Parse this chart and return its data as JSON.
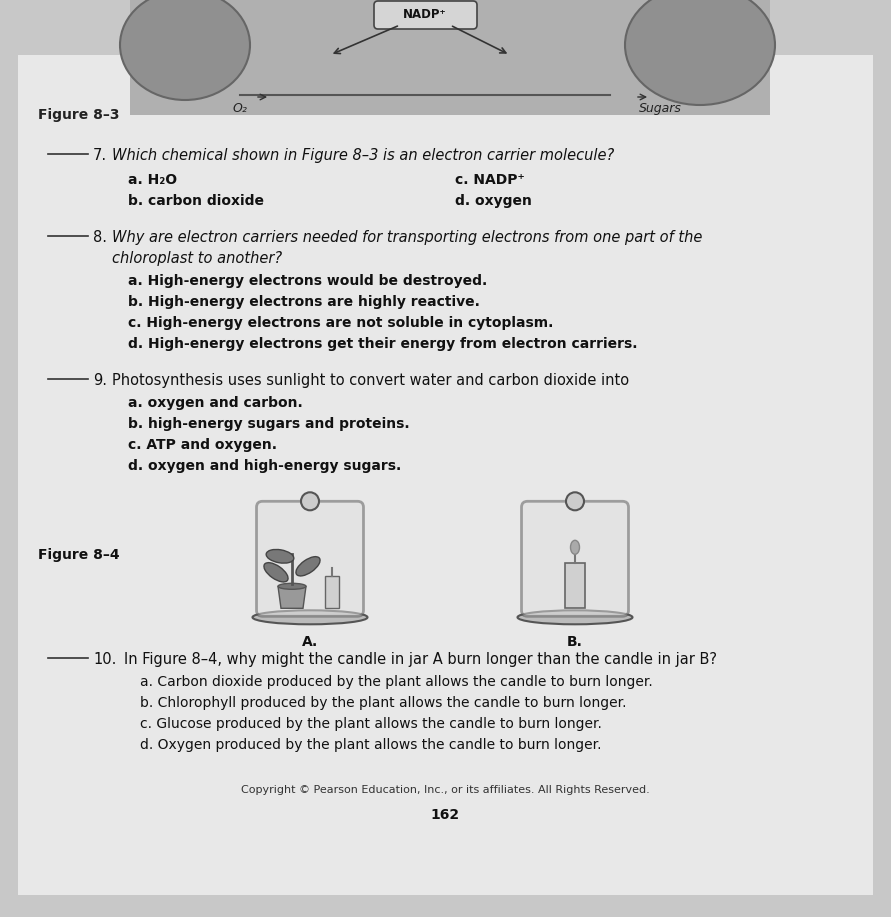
{
  "background_color": "#c8c8c8",
  "paper_color": "#e8e8e8",
  "figure_title": "Figure 8–3",
  "figure4_title": "Figure 8–4",
  "copyright": "Copyright © Pearson Education, Inc., or its affiliates. All Rights Reserved.",
  "page_number": "162",
  "blank_line_color": "#333333",
  "text_color": "#111111",
  "q7_text": "Which chemical shown in Figure 8–3 is an electron carrier molecule?",
  "q7_a": "a. H₂O",
  "q7_b": "b. carbon dioxide",
  "q7_c": "c. NADP⁺",
  "q7_d": "d. oxygen",
  "q8_text1": "Why are electron carriers needed for transporting electrons from one part of the",
  "q8_text2": "chloroplast to another?",
  "q8_a": "a. High-energy electrons would be destroyed.",
  "q8_b": "b. High-energy electrons are highly reactive.",
  "q8_c": "c. High-energy electrons are not soluble in cytoplasm.",
  "q8_d": "d. High-energy electrons get their energy from electron carriers.",
  "q9_text": "Photosynthesis uses sunlight to convert water and carbon dioxide into",
  "q9_a": "a. oxygen and carbon.",
  "q9_b": "b. high-energy sugars and proteins.",
  "q9_c": "c. ATP and oxygen.",
  "q9_d": "d. oxygen and high-energy sugars.",
  "q10_text": "In Figure 8–4, why might the candle in jar A burn longer than the candle in jar B?",
  "q10_a": "a. Carbon dioxide produced by the plant allows the candle to burn longer.",
  "q10_b": "b. Chlorophyll produced by the plant allows the candle to burn longer.",
  "q10_c": "c. Glucose produced by the plant allows the candle to burn longer.",
  "q10_d": "d. Oxygen produced by the plant allows the candle to burn longer.",
  "nadp_label": "NADP⁺",
  "o2_label": "O₂",
  "sugars_label": "Sugars",
  "jar_A_label": "A.",
  "jar_B_label": "B."
}
